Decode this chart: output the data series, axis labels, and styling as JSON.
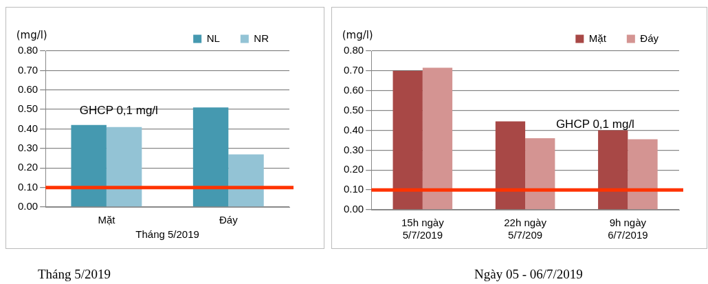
{
  "chart_data": [
    {
      "type": "bar",
      "categories": [
        "Mặt",
        "Đáy"
      ],
      "xlabel": "Tháng 5/2019",
      "ylabel": "(mg/l)",
      "series": [
        {
          "name": "NL",
          "color": "#4599b0",
          "values": [
            0.42,
            0.51
          ]
        },
        {
          "name": "NR",
          "color": "#93c3d5",
          "values": [
            0.41,
            0.27
          ]
        }
      ],
      "ylim": [
        0,
        0.8
      ],
      "yticks": [
        {
          "value": 0,
          "label": "0.00"
        },
        {
          "value": 0.1,
          "label": "0.10"
        },
        {
          "value": 0.2,
          "label": "0.20"
        },
        {
          "value": 0.3,
          "label": "0.30"
        },
        {
          "value": 0.4,
          "label": "0.40"
        },
        {
          "value": 0.5,
          "label": "0.50"
        },
        {
          "value": 0.6,
          "label": "0.60"
        },
        {
          "value": 0.7,
          "label": "0.70"
        },
        {
          "value": 0.8,
          "label": "0.80"
        }
      ],
      "grid": "y",
      "legend": "top right",
      "ref_lines": [
        {
          "axis": "y",
          "value": 0.1,
          "color": "#ff3300"
        }
      ],
      "annotations": [
        "GHCP 0,1 mg/l",
        "Tháng 5/2019"
      ]
    },
    {
      "type": "bar",
      "categories": [
        "15h ngày 5/7/2019",
        "22h ngày 5/7/209",
        "9h ngày 6/7/2019"
      ],
      "ylabel": "(mg/l)",
      "series": [
        {
          "name": "Mặt",
          "color": "#a84846",
          "values": [
            0.7,
            0.445,
            0.4
          ]
        },
        {
          "name": "Đáy",
          "color": "#d49492",
          "values": [
            0.715,
            0.36,
            0.355
          ]
        }
      ],
      "ylim": [
        0,
        0.8
      ],
      "yticks": [
        {
          "value": 0,
          "label": "0.00"
        },
        {
          "value": 0.1,
          "label": "0.10"
        },
        {
          "value": 0.2,
          "label": "0.20"
        },
        {
          "value": 0.3,
          "label": "0.30"
        },
        {
          "value": 0.4,
          "label": "0.40"
        },
        {
          "value": 0.5,
          "label": "0.50"
        },
        {
          "value": 0.6,
          "label": "0.60"
        },
        {
          "value": 0.7,
          "label": "0.70"
        },
        {
          "value": 0.8,
          "label": "0.80"
        }
      ],
      "grid": "y",
      "legend": "top right",
      "ref_lines": [
        {
          "axis": "y",
          "value": 0.1,
          "color": "#ff3300"
        }
      ],
      "annotations": [
        "GHCP 0,1 mg/l",
        "Ngày 05 - 06/7/2019"
      ]
    }
  ]
}
